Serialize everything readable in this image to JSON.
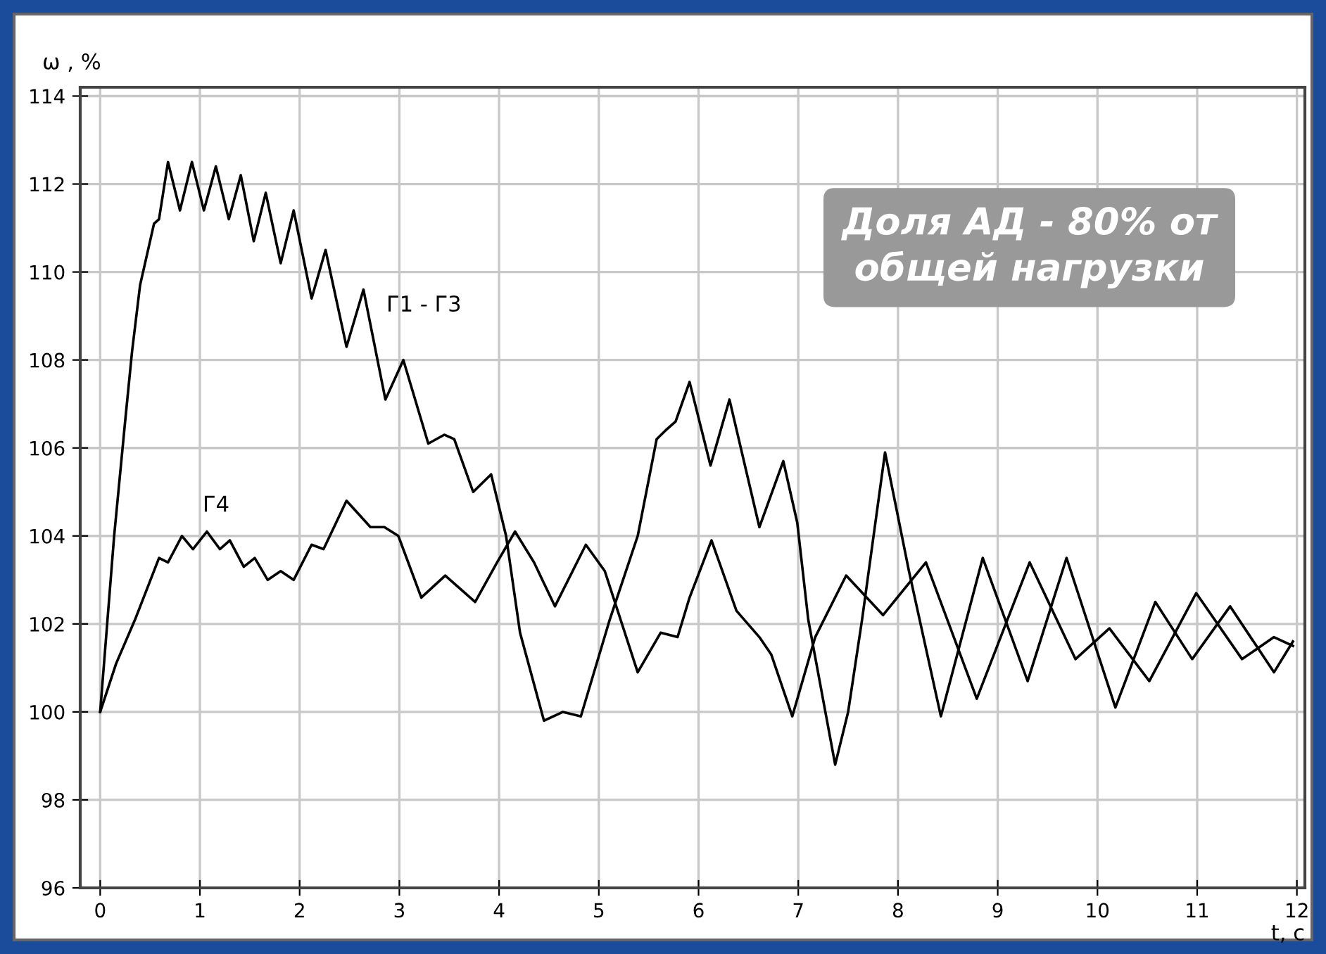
{
  "chart_data": {
    "type": "line",
    "ylabel": "ω , %",
    "xlabel": "t, c",
    "xlim": [
      -0.2,
      12.08
    ],
    "ylim": [
      96,
      114.2
    ],
    "xticks": [
      0,
      1,
      2,
      3,
      4,
      5,
      6,
      7,
      8,
      9,
      10,
      11,
      12
    ],
    "yticks": [
      96,
      98,
      100,
      102,
      104,
      106,
      108,
      110,
      112,
      114
    ],
    "grid": true,
    "marker": "none",
    "line_style": "solid",
    "annotations": [
      "Доля АД - 80% от\nобщей нагрузки"
    ],
    "series": [
      {
        "name": "Г1 - Г3",
        "color": "#000000",
        "x": [
          0,
          0.14,
          0.25,
          0.32,
          0.4,
          0.54,
          0.59,
          0.68,
          0.8,
          0.92,
          1.04,
          1.16,
          1.29,
          1.41,
          1.54,
          1.66,
          1.81,
          1.94,
          2.12,
          2.26,
          2.47,
          2.64,
          2.86,
          3.04,
          3.29,
          3.45,
          3.55,
          3.74,
          3.92,
          4.07,
          4.21,
          4.45,
          4.64,
          4.82,
          5.11,
          5.39,
          5.58,
          5.67,
          5.77,
          5.91,
          6.12,
          6.31,
          6.61,
          6.85,
          6.99,
          7.1,
          7.37,
          7.5,
          7.64,
          7.87,
          8.11,
          8.43,
          8.85,
          9.3,
          9.69,
          10.18,
          10.58,
          10.95,
          11.33,
          11.77,
          11.96
        ],
        "values": [
          100,
          104.0,
          106.6,
          108.2,
          109.7,
          111.1,
          111.2,
          112.5,
          111.4,
          112.5,
          111.4,
          112.4,
          111.2,
          112.2,
          110.7,
          111.8,
          110.2,
          111.4,
          109.4,
          110.5,
          108.3,
          109.6,
          107.1,
          108.0,
          106.1,
          106.3,
          106.2,
          105.0,
          105.4,
          104.0,
          101.8,
          99.8,
          100.0,
          99.9,
          102.1,
          104.0,
          106.2,
          106.4,
          106.6,
          107.5,
          105.6,
          107.1,
          104.2,
          105.7,
          104.3,
          102.1,
          98.8,
          100.0,
          102.1,
          105.9,
          103.2,
          99.9,
          103.5,
          100.7,
          103.5,
          100.1,
          102.5,
          101.2,
          102.4,
          100.9,
          101.6
        ]
      },
      {
        "name": "Г4",
        "color": "#000000",
        "x": [
          0,
          0.16,
          0.35,
          0.59,
          0.68,
          0.82,
          0.93,
          1.07,
          1.2,
          1.3,
          1.44,
          1.55,
          1.68,
          1.81,
          1.94,
          2.12,
          2.24,
          2.47,
          2.71,
          2.85,
          2.99,
          3.22,
          3.46,
          3.76,
          3.98,
          4.16,
          4.35,
          4.56,
          4.87,
          5.06,
          5.39,
          5.62,
          5.79,
          5.91,
          6.13,
          6.38,
          6.61,
          6.73,
          6.94,
          7.17,
          7.48,
          7.85,
          8.28,
          8.79,
          9.32,
          9.78,
          10.12,
          10.52,
          10.99,
          11.45,
          11.77,
          11.96
        ],
        "values": [
          100,
          101.1,
          102.1,
          103.5,
          103.4,
          104.0,
          103.7,
          104.1,
          103.7,
          103.9,
          103.3,
          103.5,
          103.0,
          103.2,
          103.0,
          103.8,
          103.7,
          104.8,
          104.2,
          104.2,
          104.0,
          102.6,
          103.1,
          102.5,
          103.4,
          104.1,
          103.4,
          102.4,
          103.8,
          103.2,
          100.9,
          101.8,
          101.7,
          102.6,
          103.9,
          102.3,
          101.7,
          101.3,
          99.9,
          101.7,
          103.1,
          102.2,
          103.4,
          100.3,
          103.4,
          101.2,
          101.9,
          100.7,
          102.7,
          101.2,
          101.7,
          101.5
        ]
      }
    ]
  }
}
